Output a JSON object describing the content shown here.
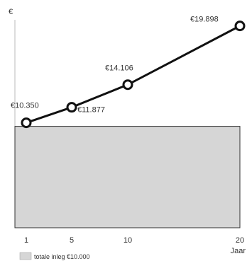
{
  "chart_data": {
    "type": "line",
    "ylabel": "€",
    "xlabel": "Jaar",
    "x": [
      1,
      5,
      10,
      20
    ],
    "x_tick_labels": [
      "1",
      "5",
      "10",
      "20"
    ],
    "values": [
      10350,
      11877,
      14106,
      19898
    ],
    "value_labels": [
      "€10.350",
      "€11.877",
      "€14.106",
      "€19.898"
    ],
    "deposit": {
      "value": 10000,
      "legend_label": "totale inleg €10.000"
    },
    "ylim": [
      0,
      20500
    ],
    "xlim": [
      0,
      20
    ],
    "grid": false,
    "legend_position": "bottom-left"
  },
  "colors": {
    "line": "#111111",
    "marker_fill": "#ffffff",
    "deposit_fill": "#d6d6d6",
    "deposit_stroke": "#333333",
    "axis": "#bbbbbb"
  }
}
